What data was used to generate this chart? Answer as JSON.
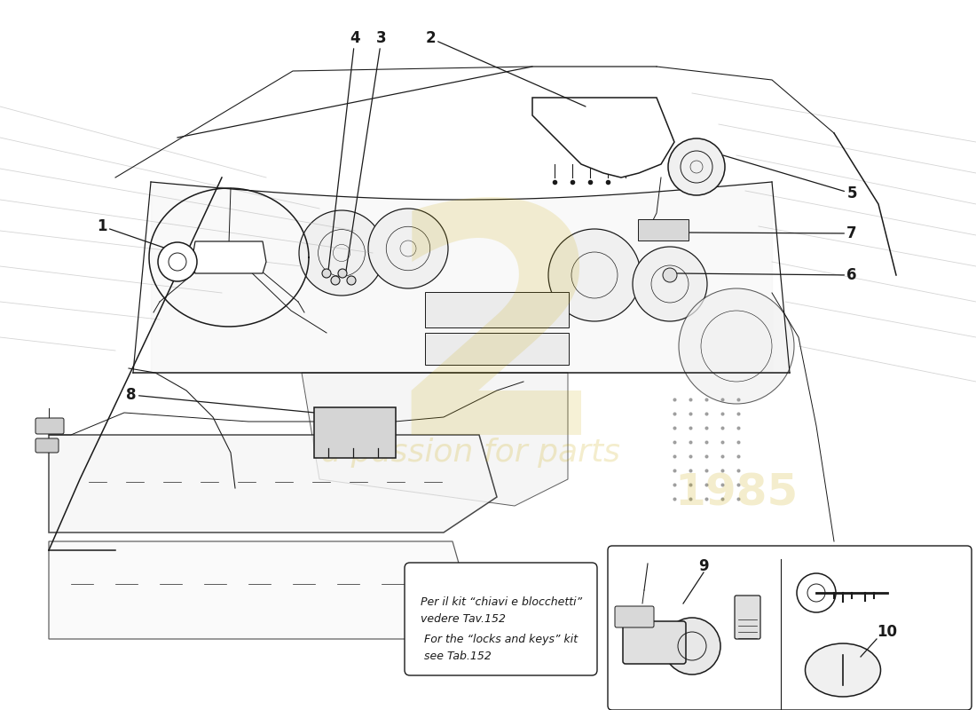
{
  "background_color": "#ffffff",
  "line_color": "#1a1a1a",
  "lw": 1.1,
  "lw_thin": 0.7,
  "watermark_big": "2",
  "watermark_text": "a passion for parts",
  "watermark_year": "1985",
  "watermark_color": "#c8a800",
  "watermark_alpha": 0.18,
  "note_it": "Per il kit “chiavi e blocchetti”\nvedere Tav.152",
  "note_en": "For the “locks and keys” kit\nsee Tab.152",
  "figsize": [
    11.0,
    8.0
  ],
  "dpi": 100
}
